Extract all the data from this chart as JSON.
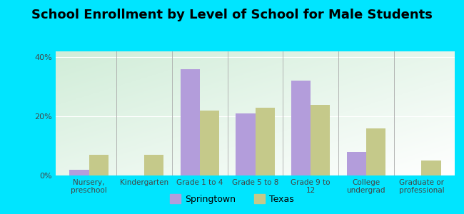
{
  "title": "School Enrollment by Level of School for Male Students",
  "categories": [
    "Nursery,\npreschool",
    "Kindergarten",
    "Grade 1 to 4",
    "Grade 5 to 8",
    "Grade 9 to\n12",
    "College\nundergrad",
    "Graduate or\nprofessional"
  ],
  "springtown": [
    2,
    0,
    36,
    21,
    32,
    8,
    0
  ],
  "texas": [
    7,
    7,
    22,
    23,
    24,
    16,
    5
  ],
  "springtown_color": "#b39ddb",
  "texas_color": "#c5c98a",
  "background_color": "#00e5ff",
  "ylim": [
    0,
    42
  ],
  "yticks": [
    0,
    20,
    40
  ],
  "ytick_labels": [
    "0%",
    "20%",
    "40%"
  ],
  "legend_labels": [
    "Springtown",
    "Texas"
  ],
  "bar_width": 0.35,
  "title_fontsize": 13,
  "tick_fontsize": 7.5,
  "legend_fontsize": 9
}
